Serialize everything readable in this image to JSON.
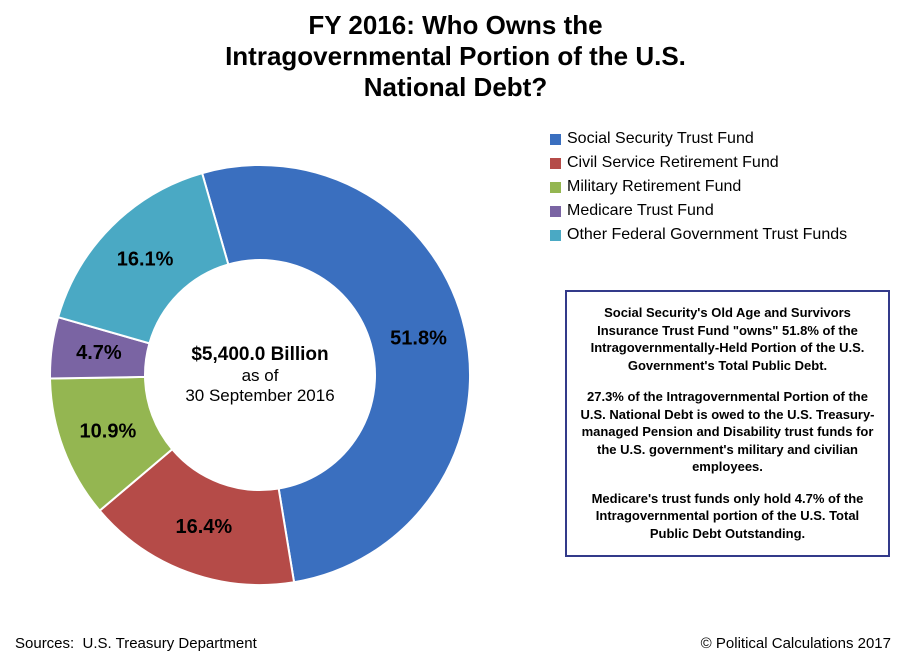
{
  "title": {
    "line1": "FY 2016: Who Owns the",
    "line2": "Intragovernmental Portion of the U.S.",
    "line3": "National Debt?",
    "fontsize": 26,
    "fontweight": "bold",
    "color": "#000000"
  },
  "chart": {
    "type": "donut",
    "background_color": "#ffffff",
    "center_amount": "$5,400.0 Billion",
    "center_sub1": "as of",
    "center_sub2": "30 September 2016",
    "center_amount_fontsize": 19,
    "center_sub_fontsize": 16,
    "outer_radius": 210,
    "inner_radius": 115,
    "label_fontsize": 20,
    "label_fontweight": "bold",
    "label_color": "#000000",
    "start_angle_deg": -16,
    "slices": [
      {
        "name": "Social Security Trust Fund",
        "value": 51.8,
        "label": "51.8%",
        "color": "#3a6fbf"
      },
      {
        "name": "Civil Service Retirement Fund",
        "value": 16.4,
        "label": "16.4%",
        "color": "#b54b48"
      },
      {
        "name": "Military Retirement Fund",
        "value": 10.9,
        "label": "10.9%",
        "color": "#94b651"
      },
      {
        "name": "Medicare Trust Fund",
        "value": 4.7,
        "label": "4.7%",
        "color": "#7a64a3"
      },
      {
        "name": "Other Federal Government Trust Funds",
        "value": 16.1,
        "label": "16.1%",
        "color": "#4aa9c4"
      }
    ]
  },
  "legend": {
    "fontsize": 16,
    "swatch_size": 11,
    "items": [
      {
        "label": "Social Security Trust Fund",
        "color": "#3a6fbf"
      },
      {
        "label": "Civil Service Retirement Fund",
        "color": "#b54b48"
      },
      {
        "label": "Military Retirement Fund",
        "color": "#94b651"
      },
      {
        "label": "Medicare Trust Fund",
        "color": "#7a64a3"
      },
      {
        "label": "Other Federal Government Trust Funds",
        "color": "#4aa9c4"
      }
    ]
  },
  "info_box": {
    "border_color": "#333a8a",
    "border_width": 2,
    "fontsize": 13,
    "fontweight": "bold",
    "color": "#000000",
    "p1": "Social Security's Old Age and Survivors Insurance Trust Fund \"owns\" 51.8% of the Intragovernmentally-Held Portion of the U.S. Government's Total Public Debt.",
    "p2": "27.3% of the Intragovernmental Portion of the U.S. National Debt is owed to the U.S. Treasury-managed Pension and Disability trust funds for the U.S. government's military and civilian employees.",
    "p3": "Medicare's trust funds only hold 4.7% of the Intragovernmental portion of the U.S. Total Public Debt Outstanding."
  },
  "sources": {
    "label": "Sources:",
    "text": "U.S. Treasury Department",
    "fontsize": 15
  },
  "copyright": {
    "text": "© Political Calculations 2017",
    "fontsize": 15
  }
}
